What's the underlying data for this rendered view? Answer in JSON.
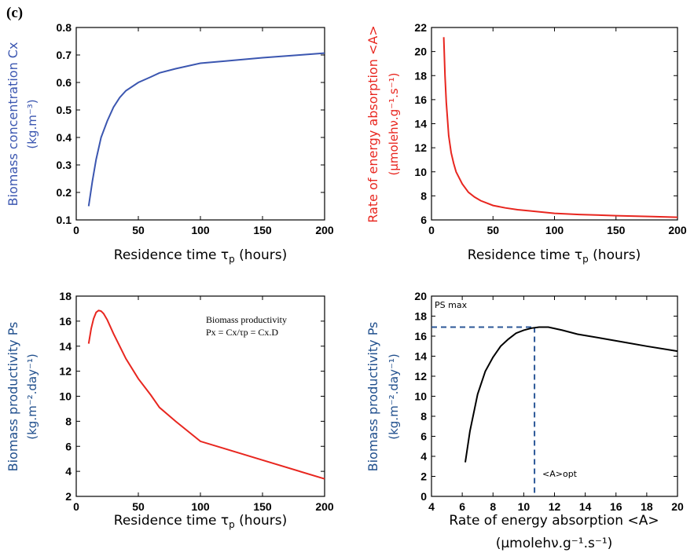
{
  "panel_label": "(c)",
  "colors": {
    "blue": "#3b56b0",
    "red": "#e8261f",
    "black": "#000000",
    "label_blue": "#1f4e8c",
    "label_red": "#e8261f",
    "ref_line": "#2b5797"
  },
  "chart_data": [
    {
      "id": "p1",
      "type": "line",
      "xlabel": "Residence time τp (hours)",
      "xlabel_main": "Residence time τ",
      "xlabel_sub": "p",
      "xlabel_tail": " (hours)",
      "ylabel_line1": "Biomass concentration Cx",
      "ylabel_line2": "(kg.m⁻³)",
      "xlim": [
        0,
        200
      ],
      "ylim": [
        0.1,
        0.8
      ],
      "xticks": [
        0,
        50,
        100,
        150,
        200
      ],
      "yticks": [
        0.1,
        0.2,
        0.3,
        0.4,
        0.5,
        0.6,
        0.7,
        0.8
      ],
      "ytick_labels": [
        "0.1",
        "0.2",
        "0.3",
        "0.4",
        "0.5",
        "0.6",
        "0.7",
        "0.8"
      ],
      "color": "#3b56b0",
      "series": [
        {
          "x": [
            10,
            13,
            16,
            20,
            25,
            30,
            35,
            40,
            50,
            60,
            67,
            80,
            100,
            120,
            150,
            180,
            200
          ],
          "y": [
            0.15,
            0.24,
            0.32,
            0.4,
            0.46,
            0.51,
            0.545,
            0.57,
            0.6,
            0.62,
            0.635,
            0.65,
            0.67,
            0.678,
            0.69,
            0.7,
            0.707
          ]
        }
      ]
    },
    {
      "id": "p2",
      "type": "line",
      "xlabel": "Residence time τp (hours)",
      "xlabel_main": "Residence time τ",
      "xlabel_sub": "p",
      "xlabel_tail": " (hours)",
      "ylabel_line1": "Rate of energy absorption <A>",
      "ylabel_line2": "(µmolehν.g⁻¹.s⁻¹)",
      "xlim": [
        0,
        200
      ],
      "ylim": [
        6,
        22
      ],
      "xticks": [
        0,
        50,
        100,
        150,
        200
      ],
      "yticks": [
        6,
        8,
        10,
        12,
        14,
        16,
        18,
        20,
        22
      ],
      "ytick_labels": [
        "6",
        "8",
        "10",
        "12",
        "14",
        "16",
        "18",
        "20",
        "22"
      ],
      "color": "#e8261f",
      "series": [
        {
          "x": [
            10,
            11,
            12,
            14,
            16,
            18,
            20,
            25,
            30,
            35,
            40,
            50,
            60,
            70,
            80,
            100,
            120,
            150,
            180,
            200
          ],
          "y": [
            21.2,
            18.0,
            15.8,
            13.0,
            11.6,
            10.7,
            10.0,
            9.0,
            8.3,
            7.9,
            7.6,
            7.2,
            7.0,
            6.85,
            6.75,
            6.55,
            6.45,
            6.35,
            6.28,
            6.22
          ]
        }
      ]
    },
    {
      "id": "p3",
      "type": "line",
      "xlabel": "Residence time τp (hours)",
      "xlabel_main": "Residence time τ",
      "xlabel_sub": "p",
      "xlabel_tail": " (hours)",
      "ylabel_line1": "Biomass productivity Ps",
      "ylabel_line2": "(kg.m⁻².day⁻¹)",
      "xlim": [
        0,
        200
      ],
      "ylim": [
        2,
        18
      ],
      "xticks": [
        0,
        50,
        100,
        150,
        200
      ],
      "yticks": [
        2,
        4,
        6,
        8,
        10,
        12,
        14,
        16,
        18
      ],
      "ytick_labels": [
        "2",
        "4",
        "6",
        "8",
        "10",
        "12",
        "14",
        "16",
        "18"
      ],
      "color": "#e8261f",
      "annotation_line1": "Biomass productivity",
      "annotation_line2": "Px = Cx/τp = Cx.D",
      "series": [
        {
          "x": [
            10,
            12,
            14,
            16,
            18,
            20,
            22,
            25,
            30,
            40,
            50,
            60,
            67,
            80,
            100,
            120,
            150,
            200
          ],
          "y": [
            14.2,
            15.4,
            16.2,
            16.7,
            16.85,
            16.8,
            16.6,
            16.1,
            15.0,
            13.0,
            11.4,
            10.1,
            9.1,
            8.0,
            6.4,
            5.8,
            4.9,
            3.4
          ]
        }
      ]
    },
    {
      "id": "p4",
      "type": "line",
      "xlabel": "Rate of energy absorption <A>",
      "xlabel2": "(µmolehν.g⁻¹.s⁻¹)",
      "ylabel_line1": "Biomass productivity Ps",
      "ylabel_line2": "(kg.m⁻².day⁻¹)",
      "xlim": [
        4,
        20
      ],
      "ylim": [
        0,
        20
      ],
      "xticks": [
        4,
        6,
        8,
        10,
        12,
        14,
        16,
        18,
        20
      ],
      "yticks": [
        0,
        2,
        4,
        6,
        8,
        10,
        12,
        14,
        16,
        18,
        20
      ],
      "ytick_labels": [
        "0",
        "2",
        "4",
        "6",
        "8",
        "10",
        "12",
        "14",
        "16",
        "18",
        "20"
      ],
      "color": "#000000",
      "ps_max_label": "PS max",
      "a_opt_label": "<A>opt",
      "ps_max": 16.9,
      "a_opt": 10.7,
      "series": [
        {
          "x": [
            6.2,
            6.5,
            7.0,
            7.5,
            8.0,
            8.5,
            9.0,
            9.5,
            10.0,
            10.5,
            11.0,
            11.6,
            12.5,
            13.5,
            15.0,
            16.5,
            18.0,
            20.0
          ],
          "y": [
            3.4,
            6.5,
            10.2,
            12.5,
            13.9,
            15.0,
            15.7,
            16.3,
            16.6,
            16.8,
            16.9,
            16.9,
            16.6,
            16.2,
            15.8,
            15.4,
            15.0,
            14.5
          ]
        }
      ]
    }
  ]
}
